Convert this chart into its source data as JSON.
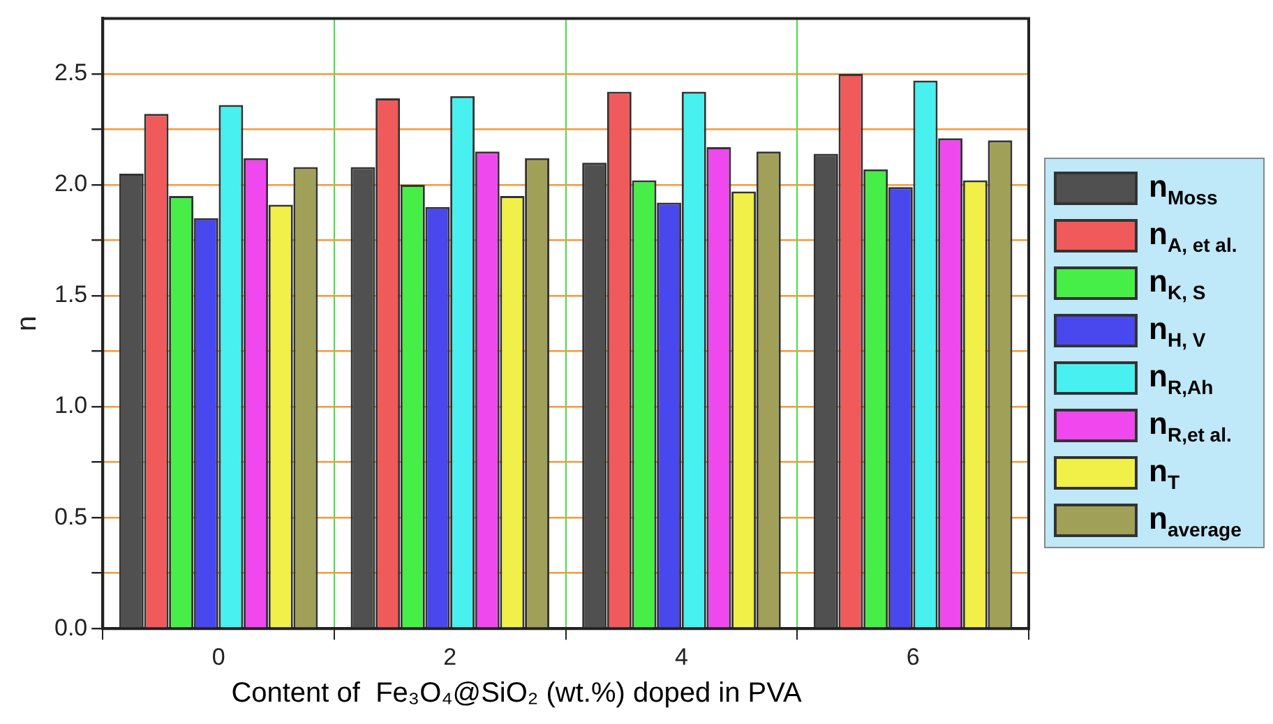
{
  "chart_data": {
    "type": "bar",
    "xlabel": "Content of  Fe₃O₄@SiO₂ (wt.%) doped in PVA",
    "ylabel": "n",
    "categories": [
      "0",
      "2",
      "4",
      "6"
    ],
    "series": [
      {
        "name": "n$_{Moss}$",
        "color": "#505050",
        "values": [
          2.05,
          2.08,
          2.1,
          2.14
        ]
      },
      {
        "name": "n$_{A, et al.}$",
        "color": "#f05a5a",
        "values": [
          2.32,
          2.39,
          2.42,
          2.5
        ]
      },
      {
        "name": "n$_{K, S}$",
        "color": "#48ee48",
        "values": [
          1.95,
          2.0,
          2.02,
          2.07
        ]
      },
      {
        "name": "n$_{H, V}$",
        "color": "#4848ee",
        "values": [
          1.85,
          1.9,
          1.92,
          1.99
        ]
      },
      {
        "name": "n$_{R,Ah}$",
        "color": "#48f0f0",
        "values": [
          2.36,
          2.4,
          2.42,
          2.47
        ]
      },
      {
        "name": "n$_{R,et al.}$",
        "color": "#ee48ee",
        "values": [
          2.12,
          2.15,
          2.17,
          2.21
        ]
      },
      {
        "name": "n$_{T}$",
        "color": "#f0f048",
        "values": [
          1.91,
          1.95,
          1.97,
          2.02
        ]
      },
      {
        "name": "n$_{average}$",
        "color": "#a0a058",
        "values": [
          2.08,
          2.12,
          2.15,
          2.2
        ]
      }
    ],
    "ylim": [
      0,
      2.75
    ],
    "yticks": [
      {
        "value": 0,
        "label": "0.0"
      },
      {
        "value": 0.25,
        "label": null
      },
      0.5,
      {
        "value": 0.75,
        "label": null
      },
      {
        "value": 1,
        "label": "1.0"
      },
      {
        "value": 1.25,
        "label": null
      },
      1.5,
      {
        "value": 1.75,
        "label": null
      },
      {
        "value": 2,
        "label": "2.0"
      },
      {
        "value": 2.25,
        "label": null
      },
      2.5
    ],
    "grid": true,
    "legend": "right"
  }
}
